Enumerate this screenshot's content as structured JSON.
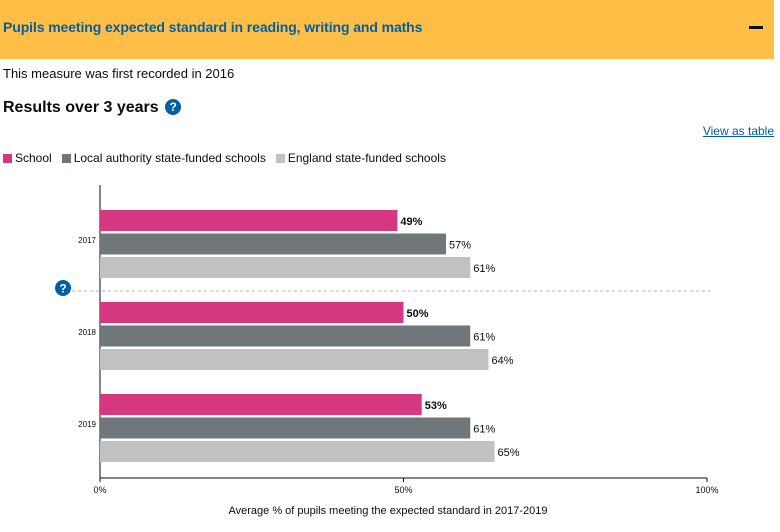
{
  "accordion": {
    "title": "Pupils meeting expected standard in reading, writing and maths",
    "collapse_icon": "minus-icon"
  },
  "intro_text": "This measure was first recorded in 2016",
  "results": {
    "heading": "Results over 3 years",
    "help_glyph": "?",
    "help_icon": "question-circle-icon"
  },
  "view_as_table": "View as table",
  "legend": [
    {
      "label": "School",
      "color": "#d53880"
    },
    {
      "label": "Local authority state-funded schools",
      "color": "#6f777b"
    },
    {
      "label": "England state-funded schools",
      "color": "#bfc1c3"
    }
  ],
  "chart_data": {
    "type": "bar",
    "orientation": "horizontal",
    "categories": [
      "2017",
      "2018",
      "2019"
    ],
    "series": [
      {
        "name": "School",
        "color": "#d53880",
        "values": [
          49,
          50,
          53
        ],
        "value_labels": [
          "49%",
          "50%",
          "53%"
        ],
        "bold_labels": true
      },
      {
        "name": "Local authority state-funded schools",
        "color": "#6f777b",
        "values": [
          57,
          61,
          61
        ],
        "value_labels": [
          "57%",
          "61%",
          "61%"
        ]
      },
      {
        "name": "England state-funded schools",
        "color": "#bfc1c3",
        "values": [
          61,
          64,
          65
        ],
        "value_labels": [
          "61%",
          "64%",
          "65%"
        ]
      }
    ],
    "xlim": [
      0,
      100
    ],
    "x_ticks": [
      0,
      50,
      100
    ],
    "x_tick_labels": [
      "0%",
      "50%",
      "100%"
    ],
    "xlabel": "Average % of pupils meeting the expected standard in 2017-2019",
    "dashed_separator_after_category": "2017",
    "legend_position": "top-left"
  }
}
